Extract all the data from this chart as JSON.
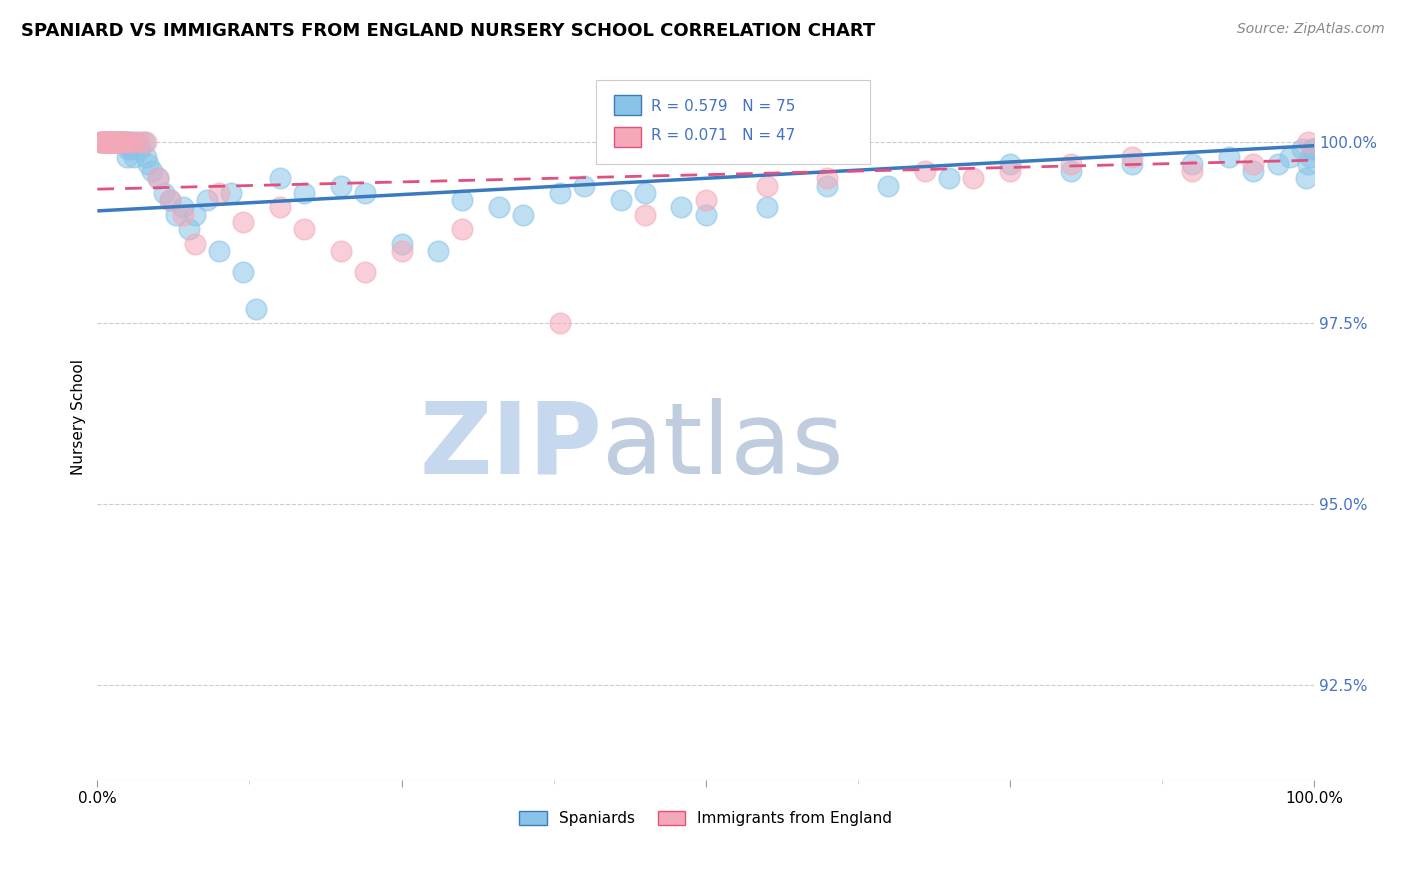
{
  "title": "SPANIARD VS IMMIGRANTS FROM ENGLAND NURSERY SCHOOL CORRELATION CHART",
  "source": "Source: ZipAtlas.com",
  "ylabel": "Nursery School",
  "yticks": [
    "92.5%",
    "95.0%",
    "97.5%",
    "100.0%"
  ],
  "ytick_vals": [
    92.5,
    95.0,
    97.5,
    100.0
  ],
  "xlim": [
    0,
    100
  ],
  "ylim": [
    91.2,
    101.2
  ],
  "y_top": 100.0,
  "legend_blue_label": "Spaniards",
  "legend_pink_label": "Immigrants from England",
  "R_blue": 0.579,
  "N_blue": 75,
  "R_pink": 0.071,
  "N_pink": 47,
  "blue_color": "#89c4e8",
  "pink_color": "#f4a8b8",
  "blue_line_color": "#3a7abf",
  "pink_line_color": "#e05080",
  "blue_line_solid": true,
  "pink_line_dashed": true,
  "blue_scatter_x": [
    0.3,
    0.5,
    0.7,
    0.9,
    1.0,
    1.1,
    1.2,
    1.3,
    1.4,
    1.5,
    1.6,
    1.7,
    1.8,
    1.9,
    2.0,
    2.1,
    2.2,
    2.3,
    2.4,
    2.5,
    2.6,
    2.7,
    2.8,
    3.0,
    3.2,
    3.5,
    3.8,
    4.0,
    4.2,
    4.5,
    5.0,
    5.5,
    6.0,
    6.5,
    7.0,
    7.5,
    8.0,
    9.0,
    10.0,
    11.0,
    12.0,
    13.0,
    15.0,
    17.0,
    20.0,
    22.0,
    25.0,
    28.0,
    30.0,
    33.0,
    35.0,
    38.0,
    40.0,
    43.0,
    45.0,
    48.0,
    50.0,
    55.0,
    60.0,
    65.0,
    70.0,
    75.0,
    80.0,
    85.0,
    90.0,
    93.0,
    95.0,
    97.0,
    98.0,
    99.0,
    99.3,
    99.5,
    99.7,
    99.8,
    99.9
  ],
  "blue_scatter_y": [
    100.0,
    100.0,
    100.0,
    100.0,
    100.0,
    100.0,
    100.0,
    100.0,
    100.0,
    100.0,
    100.0,
    100.0,
    100.0,
    100.0,
    100.0,
    100.0,
    100.0,
    100.0,
    99.8,
    99.9,
    100.0,
    100.0,
    99.9,
    99.8,
    100.0,
    99.9,
    100.0,
    99.8,
    99.7,
    99.6,
    99.5,
    99.3,
    99.2,
    99.0,
    99.1,
    98.8,
    99.0,
    99.2,
    98.5,
    99.3,
    98.2,
    97.7,
    99.5,
    99.3,
    99.4,
    99.3,
    98.6,
    98.5,
    99.2,
    99.1,
    99.0,
    99.3,
    99.4,
    99.2,
    99.3,
    99.1,
    99.0,
    99.1,
    99.4,
    99.4,
    99.5,
    99.7,
    99.6,
    99.7,
    99.7,
    99.8,
    99.6,
    99.7,
    99.8,
    99.9,
    99.5,
    99.7,
    99.8,
    99.9,
    99.9
  ],
  "pink_scatter_x": [
    0.2,
    0.4,
    0.5,
    0.6,
    0.7,
    0.8,
    0.9,
    1.0,
    1.1,
    1.2,
    1.3,
    1.4,
    1.5,
    1.6,
    1.7,
    1.8,
    2.0,
    2.2,
    2.5,
    3.0,
    3.5,
    4.0,
    5.0,
    6.0,
    7.0,
    8.0,
    10.0,
    12.0,
    15.0,
    17.0,
    20.0,
    22.0,
    25.0,
    30.0,
    38.0,
    45.0,
    50.0,
    55.0,
    60.0,
    68.0,
    72.0,
    75.0,
    80.0,
    85.0,
    90.0,
    95.0,
    99.5
  ],
  "pink_scatter_y": [
    100.0,
    100.0,
    100.0,
    100.0,
    100.0,
    100.0,
    100.0,
    100.0,
    100.0,
    100.0,
    100.0,
    100.0,
    100.0,
    100.0,
    100.0,
    100.0,
    100.0,
    100.0,
    100.0,
    100.0,
    100.0,
    100.0,
    99.5,
    99.2,
    99.0,
    98.6,
    99.3,
    98.9,
    99.1,
    98.8,
    98.5,
    98.2,
    98.5,
    98.8,
    97.5,
    99.0,
    99.2,
    99.4,
    99.5,
    99.6,
    99.5,
    99.6,
    99.7,
    99.8,
    99.6,
    99.7,
    100.0
  ],
  "blue_line_x": [
    0,
    100
  ],
  "blue_line_y": [
    99.05,
    99.95
  ],
  "pink_line_x": [
    0,
    100
  ],
  "pink_line_y": [
    99.35,
    99.75
  ],
  "hgrid_color": "#cccccc",
  "hgrid_style": "--",
  "watermark_zip_color": "#c5d8ee",
  "watermark_atlas_color": "#b8c8dc",
  "title_fontsize": 13,
  "source_fontsize": 10,
  "ylabel_fontsize": 11,
  "tick_fontsize": 11,
  "stat_fontsize": 11,
  "legend_fontsize": 11
}
